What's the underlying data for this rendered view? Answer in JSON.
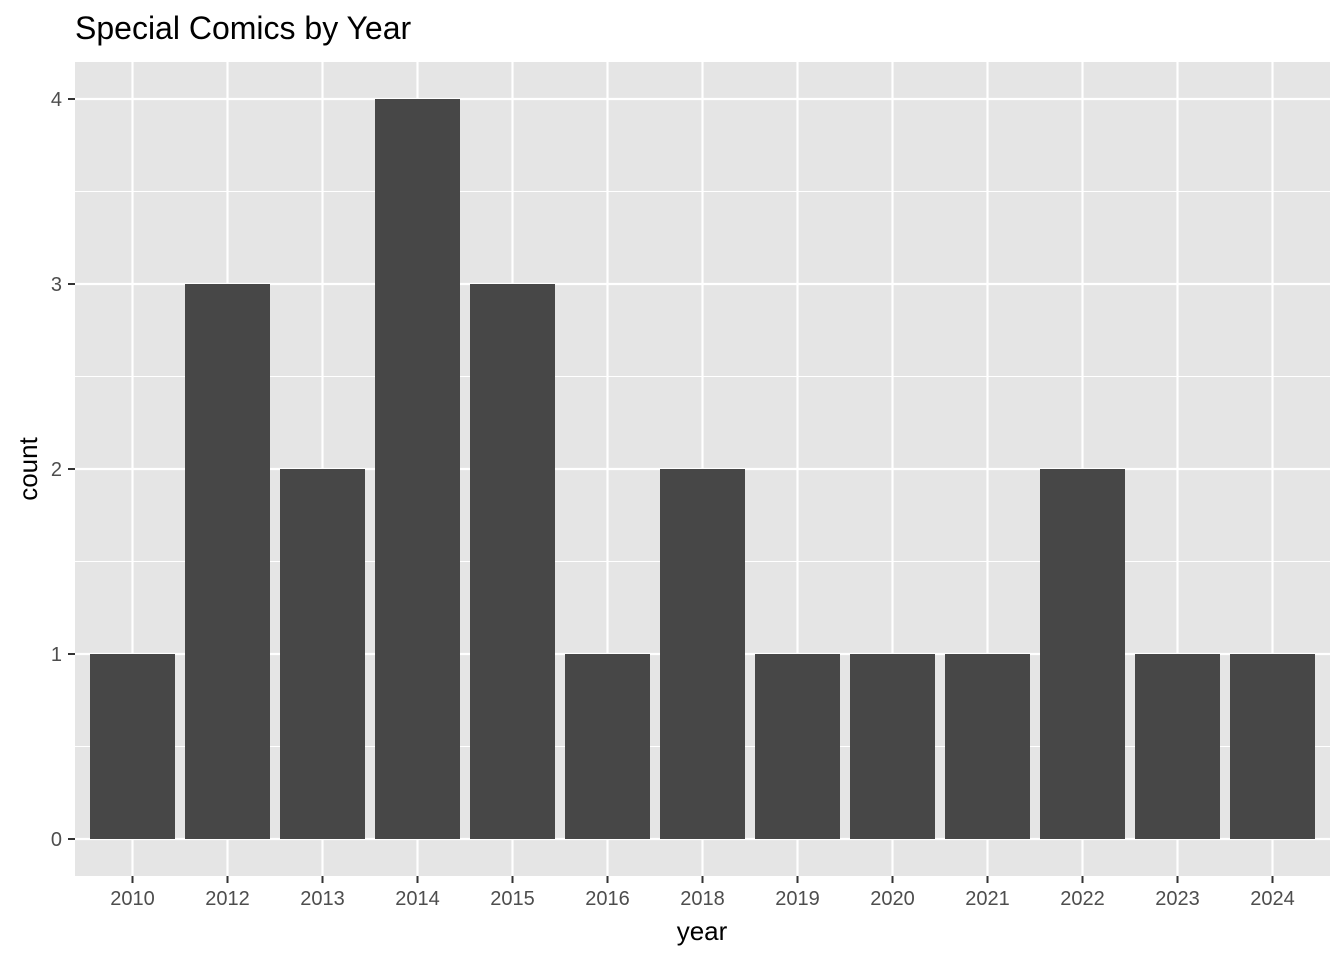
{
  "chart_data": {
    "type": "bar",
    "title": "Special Comics by Year",
    "xlabel": "year",
    "ylabel": "count",
    "categories": [
      "2010",
      "2012",
      "2013",
      "2014",
      "2015",
      "2016",
      "2018",
      "2019",
      "2020",
      "2021",
      "2022",
      "2023",
      "2024"
    ],
    "values": [
      1,
      3,
      2,
      4,
      3,
      1,
      2,
      1,
      1,
      1,
      2,
      1,
      1
    ],
    "yticks": [
      "0",
      "1",
      "2",
      "3",
      "4"
    ],
    "ylim": [
      -0.2,
      4.2
    ],
    "grid": true,
    "legend": "none",
    "colors": {
      "panel": "#e5e5e5",
      "grid": "#ffffff",
      "bar": "#474747",
      "tick": "#333333"
    }
  }
}
